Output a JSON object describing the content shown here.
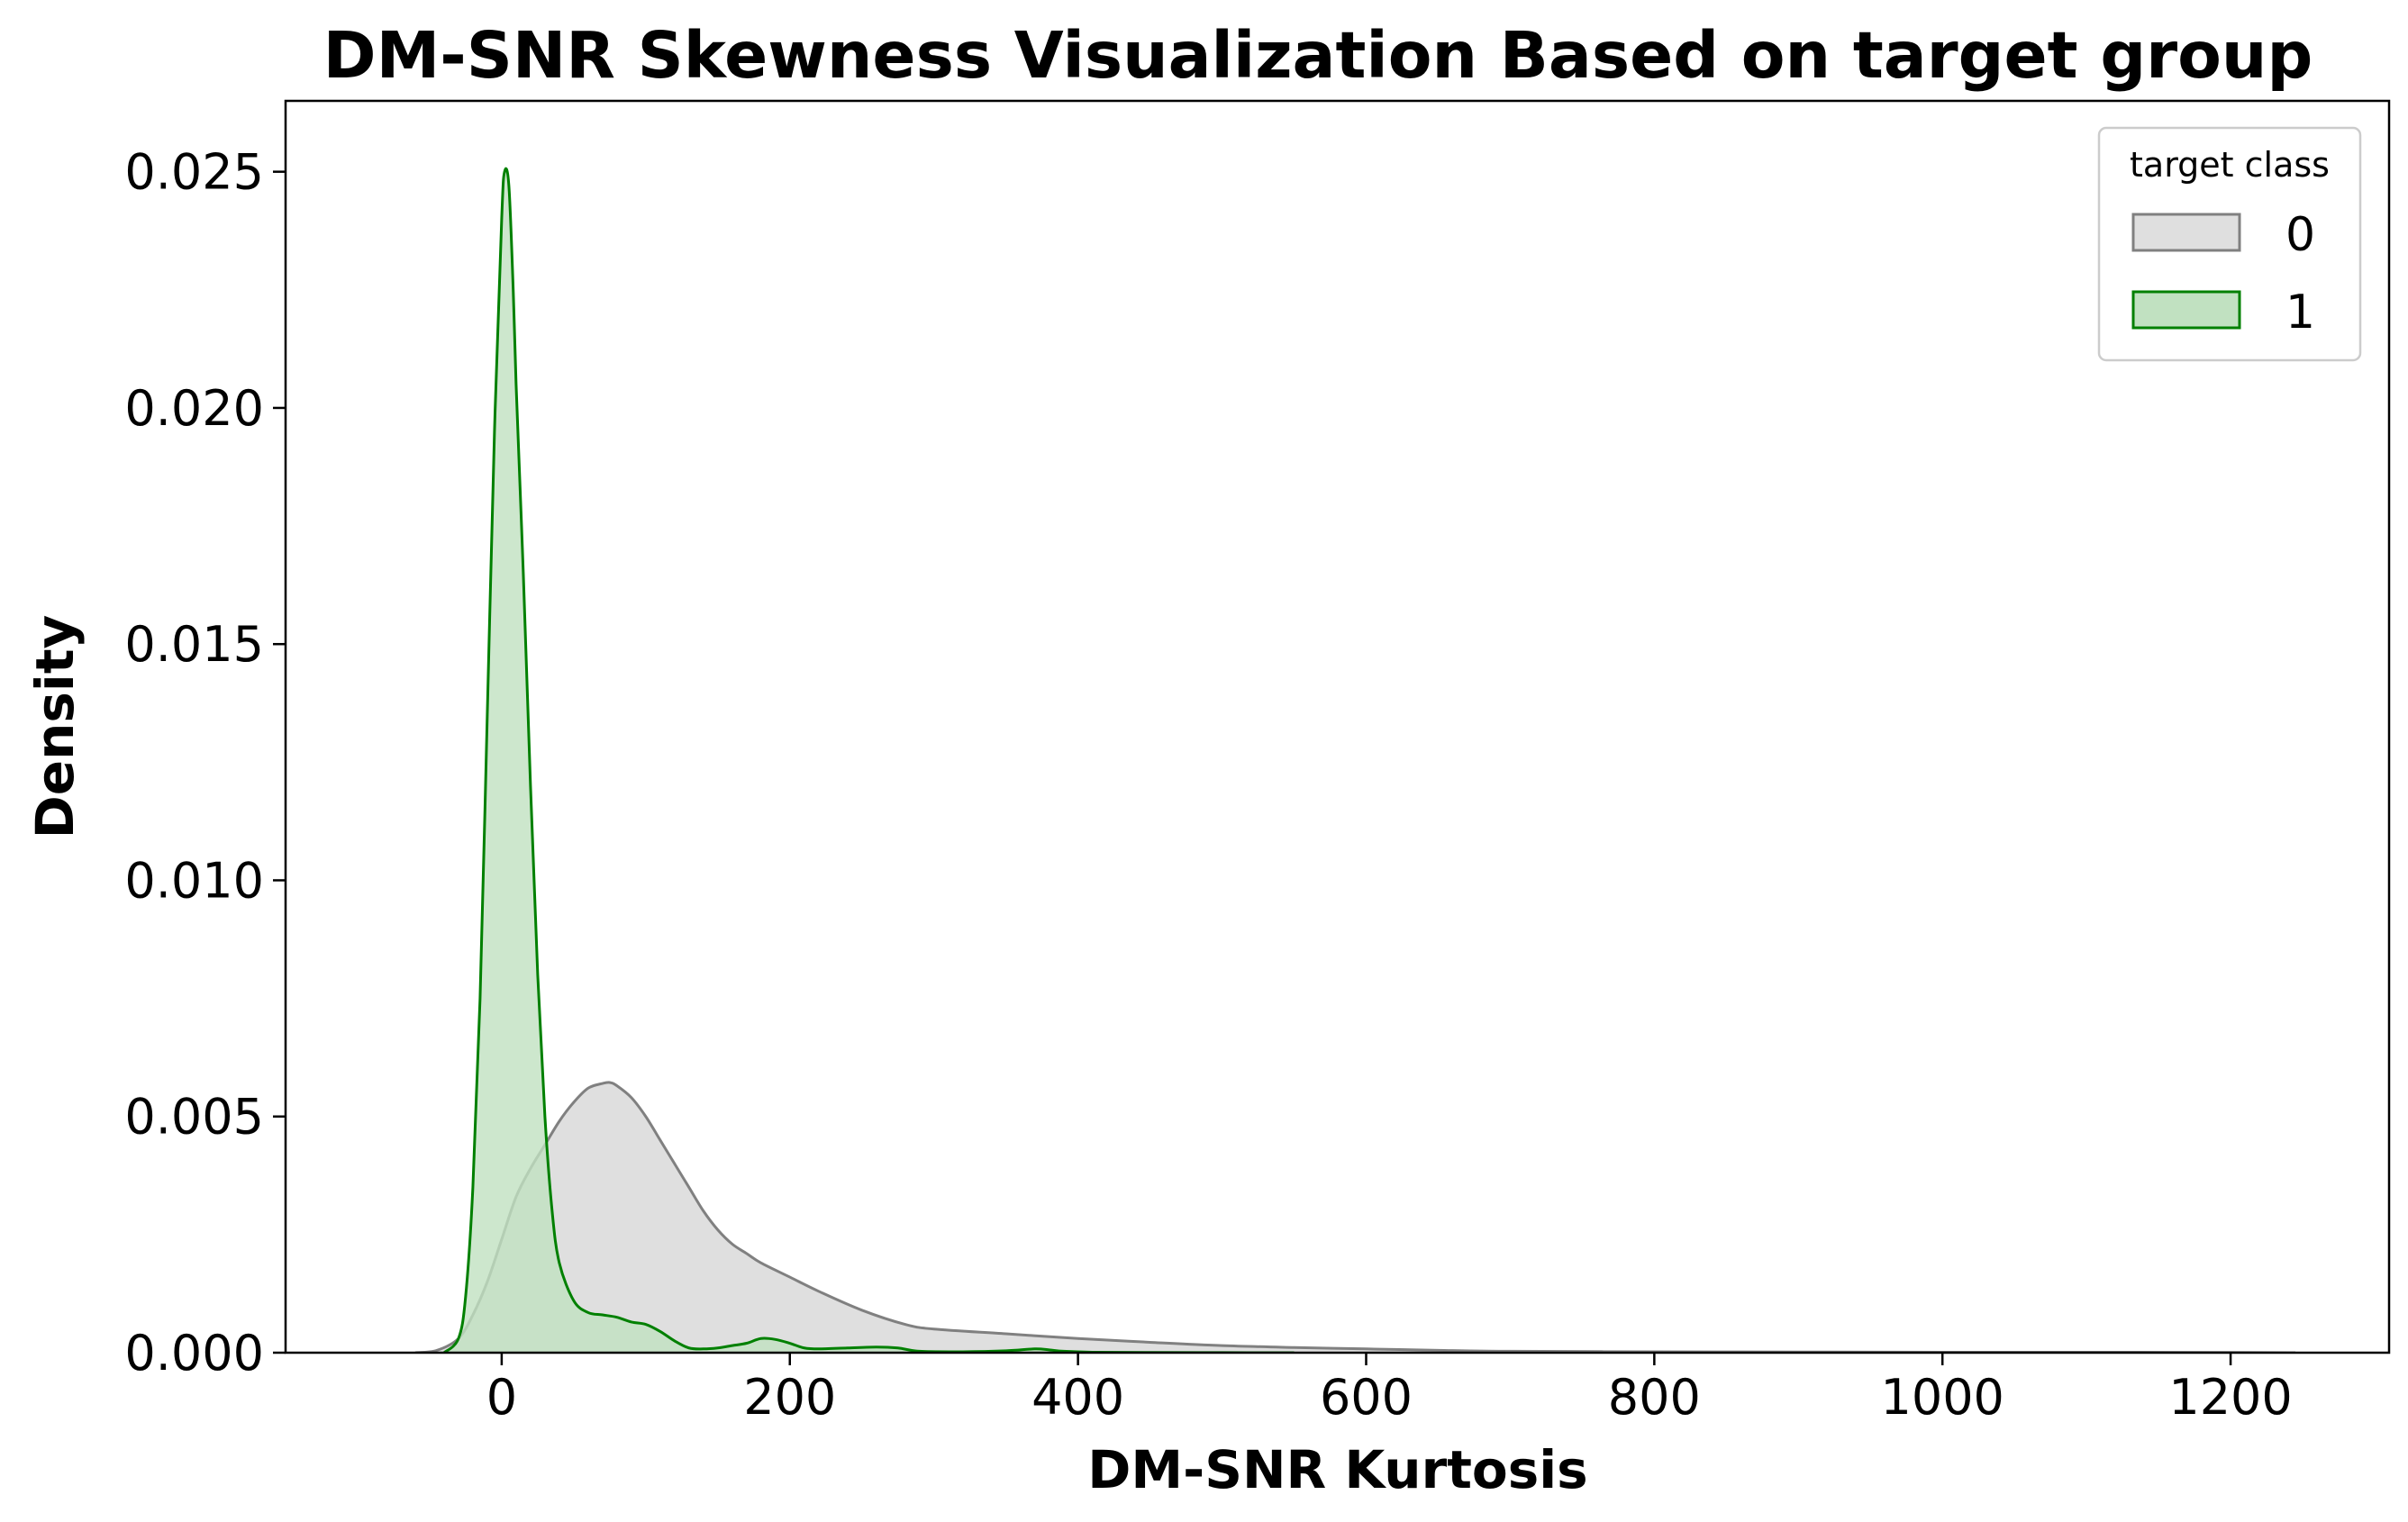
{
  "chart_data": {
    "type": "area",
    "title": "DM-SNR Skewness Visualization Based on target group",
    "xlabel": "DM-SNR Kurtosis",
    "ylabel": "Density",
    "xlim": [
      -150,
      1310
    ],
    "ylim": [
      0,
      0.0265
    ],
    "x_ticks": [
      0,
      200,
      400,
      600,
      800,
      1000,
      1200
    ],
    "y_ticks": [
      0.0,
      0.005,
      0.01,
      0.015,
      0.02,
      0.025
    ],
    "x_tick_labels": [
      "0",
      "200",
      "400",
      "600",
      "800",
      "1000",
      "1200"
    ],
    "y_tick_labels": [
      "0.000",
      "0.005",
      "0.010",
      "0.015",
      "0.020",
      "0.025"
    ],
    "grid": false,
    "legend": {
      "title": "target class",
      "position": "top-right"
    },
    "series": [
      {
        "name": "0",
        "line_color": "#808080",
        "fill_color": "#dfdfdf",
        "x": [
          -60,
          -45,
          -30,
          -20,
          -10,
          0,
          10,
          20,
          30,
          40,
          50,
          60,
          70,
          75,
          80,
          90,
          100,
          110,
          120,
          130,
          140,
          150,
          160,
          170,
          180,
          200,
          220,
          250,
          280,
          300,
          350,
          400,
          450,
          500,
          550,
          600,
          650,
          700,
          800,
          900,
          1000,
          1100,
          1200,
          1245
        ],
        "y": [
          0,
          5e-05,
          0.0003,
          0.0008,
          0.0015,
          0.0024,
          0.0033,
          0.0039,
          0.0044,
          0.0049,
          0.0053,
          0.0056,
          0.0057,
          0.00572,
          0.00565,
          0.0054,
          0.005,
          0.0045,
          0.004,
          0.0035,
          0.003,
          0.0026,
          0.0023,
          0.0021,
          0.0019,
          0.0016,
          0.0013,
          0.0009,
          0.0006,
          0.0005,
          0.0004,
          0.0003,
          0.00022,
          0.00015,
          0.00011,
          8e-05,
          5e-05,
          3e-05,
          2e-05,
          1.5e-05,
          1e-05,
          1e-05,
          5e-06,
          0
        ]
      },
      {
        "name": "1",
        "line_color": "#008000",
        "fill_color": "#c1e1c1",
        "x": [
          -40,
          -30,
          -25,
          -20,
          -15,
          -10,
          -5,
          0,
          2,
          5,
          8,
          10,
          15,
          20,
          25,
          30,
          35,
          40,
          50,
          60,
          70,
          80,
          90,
          100,
          110,
          120,
          130,
          140,
          150,
          160,
          170,
          180,
          190,
          200,
          210,
          220,
          240,
          260,
          275,
          290,
          320,
          350,
          370,
          380,
          390,
          410,
          450,
          500,
          550
        ],
        "y": [
          0,
          0.0003,
          0.0012,
          0.0035,
          0.0075,
          0.0135,
          0.0195,
          0.024,
          0.025,
          0.0247,
          0.0225,
          0.0205,
          0.0165,
          0.012,
          0.008,
          0.005,
          0.003,
          0.0019,
          0.0011,
          0.00085,
          0.0008,
          0.00075,
          0.00065,
          0.0006,
          0.00045,
          0.00025,
          0.0001,
          8e-05,
          0.0001,
          0.00015,
          0.0002,
          0.0003,
          0.00028,
          0.0002,
          0.0001,
          8e-05,
          0.0001,
          0.00012,
          0.0001,
          3e-05,
          2e-05,
          4e-05,
          8e-05,
          6e-05,
          3e-05,
          1e-05,
          5e-06,
          2e-06,
          0
        ]
      }
    ]
  }
}
